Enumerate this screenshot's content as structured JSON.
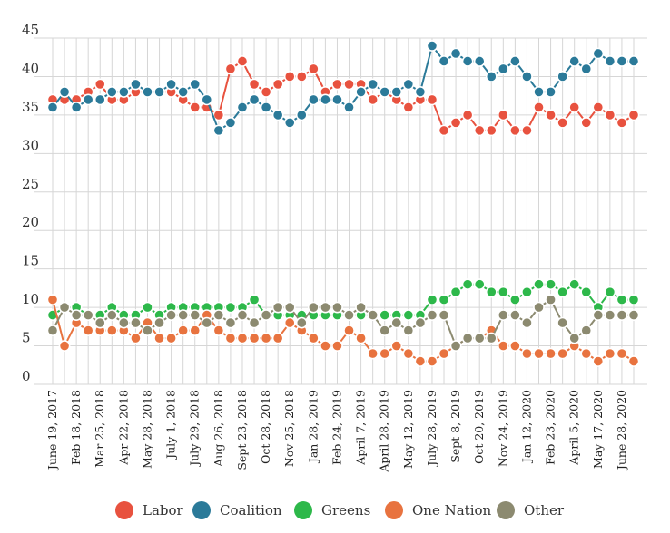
{
  "chart_data": {
    "type": "line",
    "title": "",
    "xlabel": "",
    "ylabel": "",
    "ylim": [
      0,
      45
    ],
    "yticks": [
      0,
      5,
      10,
      15,
      20,
      25,
      30,
      35,
      40,
      45
    ],
    "grid": true,
    "legend_position": "bottom",
    "x_tick_labels": [
      "June 19, 2017",
      "Feb 18, 2018",
      "Mar 25, 2018",
      "Apr 22, 2018",
      "May 28, 2018",
      "July 1, 2018",
      "July 29, 2018",
      "Aug 26, 2018",
      "Sept 23, 2018",
      "Oct 28, 2018",
      "Nov 25, 2018",
      "Jan 28, 2019",
      "Feb 24, 2019",
      "April 7, 2019",
      "April 28, 2019",
      "May 12, 2019",
      "July 28, 2019",
      "Sept 8, 2019",
      "Oct 20, 2019",
      "Nov 24, 2019",
      "Jan 12, 2020",
      "Feb 23, 2020",
      "April 5, 2020",
      "May 17, 2020",
      "June 28, 2020"
    ],
    "series": [
      {
        "name": "Labor",
        "color": "#e8523f",
        "values": [
          37,
          37,
          37,
          38,
          39,
          37,
          37,
          38,
          38,
          38,
          38,
          37,
          36,
          36,
          35,
          41,
          42,
          39,
          38,
          39,
          40,
          40,
          41,
          38,
          39,
          39,
          39,
          37,
          38,
          37,
          36,
          37,
          37,
          33,
          34,
          35,
          33,
          33,
          35,
          33,
          33,
          36,
          35,
          34,
          36,
          34,
          36,
          35,
          34,
          35
        ]
      },
      {
        "name": "Coalition",
        "color": "#2b7a99",
        "values": [
          36,
          38,
          36,
          37,
          37,
          38,
          38,
          39,
          38,
          38,
          39,
          38,
          39,
          37,
          33,
          34,
          36,
          37,
          36,
          35,
          34,
          35,
          37,
          37,
          37,
          36,
          38,
          39,
          38,
          38,
          39,
          38,
          44,
          42,
          43,
          42,
          42,
          40,
          41,
          42,
          40,
          38,
          38,
          40,
          42,
          41,
          43,
          42,
          42,
          42
        ]
      },
      {
        "name": "Greens",
        "color": "#2db84a",
        "values": [
          9,
          10,
          10,
          9,
          9,
          10,
          9,
          9,
          10,
          9,
          10,
          10,
          10,
          10,
          10,
          10,
          10,
          11,
          9,
          9,
          9,
          9,
          9,
          9,
          9,
          9,
          9,
          9,
          9,
          9,
          9,
          9,
          11,
          11,
          12,
          13,
          13,
          12,
          12,
          11,
          12,
          13,
          13,
          12,
          13,
          12,
          10,
          12,
          11,
          11
        ]
      },
      {
        "name": "One Nation",
        "color": "#e8733f",
        "values": [
          11,
          5,
          8,
          7,
          7,
          7,
          7,
          6,
          8,
          6,
          6,
          7,
          7,
          9,
          7,
          6,
          6,
          6,
          6,
          6,
          8,
          7,
          6,
          5,
          5,
          7,
          6,
          4,
          4,
          5,
          4,
          3,
          3,
          4,
          5,
          6,
          6,
          7,
          5,
          5,
          4,
          4,
          4,
          4,
          5,
          4,
          3,
          4,
          4,
          3
        ]
      },
      {
        "name": "Other",
        "color": "#8c8a70",
        "values": [
          7,
          10,
          9,
          9,
          8,
          9,
          8,
          8,
          7,
          8,
          9,
          9,
          9,
          8,
          9,
          8,
          9,
          8,
          9,
          10,
          10,
          8,
          10,
          10,
          10,
          9,
          10,
          9,
          7,
          8,
          7,
          8,
          9,
          9,
          5,
          6,
          6,
          6,
          9,
          9,
          8,
          10,
          11,
          8,
          6,
          7,
          9,
          9,
          9,
          9
        ]
      }
    ]
  }
}
